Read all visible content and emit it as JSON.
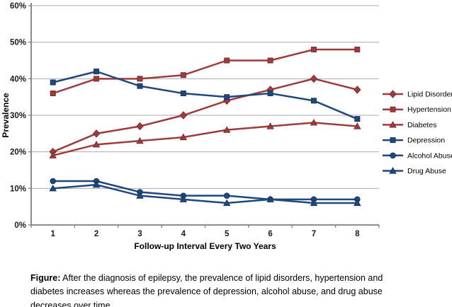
{
  "chart_data": {
    "type": "line",
    "title": "",
    "xlabel": "Follow-up Interval Every Two Years",
    "ylabel": "Prevalence",
    "x_ticks": [
      "1",
      "2",
      "3",
      "4",
      "5",
      "6",
      "7",
      "8"
    ],
    "y_ticks": [
      "0%",
      "10%",
      "20%",
      "30%",
      "40%",
      "50%",
      "60%"
    ],
    "ylim": [
      0,
      60
    ],
    "y_step": 10,
    "grid": true,
    "legend_position": "right",
    "categories": [
      1,
      2,
      3,
      4,
      5,
      6,
      7,
      8
    ],
    "series": [
      {
        "name": "Lipid Disorders",
        "marker": "diamond",
        "color": "#9E3B3C",
        "edge": "#7B2D2E",
        "values": [
          20,
          25,
          27,
          30,
          34,
          37,
          40,
          37
        ]
      },
      {
        "name": "Hypertension",
        "marker": "square",
        "color": "#9E3B3C",
        "edge": "#7B2D2E",
        "values": [
          36,
          40,
          40,
          41,
          45,
          45,
          48,
          48
        ]
      },
      {
        "name": "Diabetes",
        "marker": "triangle",
        "color": "#9E3B3C",
        "edge": "#7B2D2E",
        "values": [
          19,
          22,
          23,
          24,
          26,
          27,
          28,
          27
        ]
      },
      {
        "name": "Depression",
        "marker": "square",
        "color": "#1F497D",
        "edge": "#17365D",
        "values": [
          39,
          42,
          38,
          36,
          35,
          36,
          34,
          29
        ]
      },
      {
        "name": "Alcohol Abuse",
        "marker": "circle",
        "color": "#1F497D",
        "edge": "#17365D",
        "values": [
          12,
          12,
          9,
          8,
          8,
          7,
          7,
          7
        ]
      },
      {
        "name": "Drug Abuse",
        "marker": "triangle",
        "color": "#1F497D",
        "edge": "#17365D",
        "values": [
          10,
          11,
          8,
          7,
          6,
          7,
          6,
          6
        ]
      }
    ],
    "grid_color": "#ABABAB",
    "axis_color": "#7F7F7F",
    "tick_label_color": "#1A1A1A",
    "legend_text_color": "#000000"
  },
  "caption": {
    "prefix": "Figure:",
    "text": "After the diagnosis of epilepsy, the prevalence of lipid disorders, hypertension and diabetes increases whereas the prevalence of depression, alcohol abuse, and drug abuse decreases over time."
  }
}
